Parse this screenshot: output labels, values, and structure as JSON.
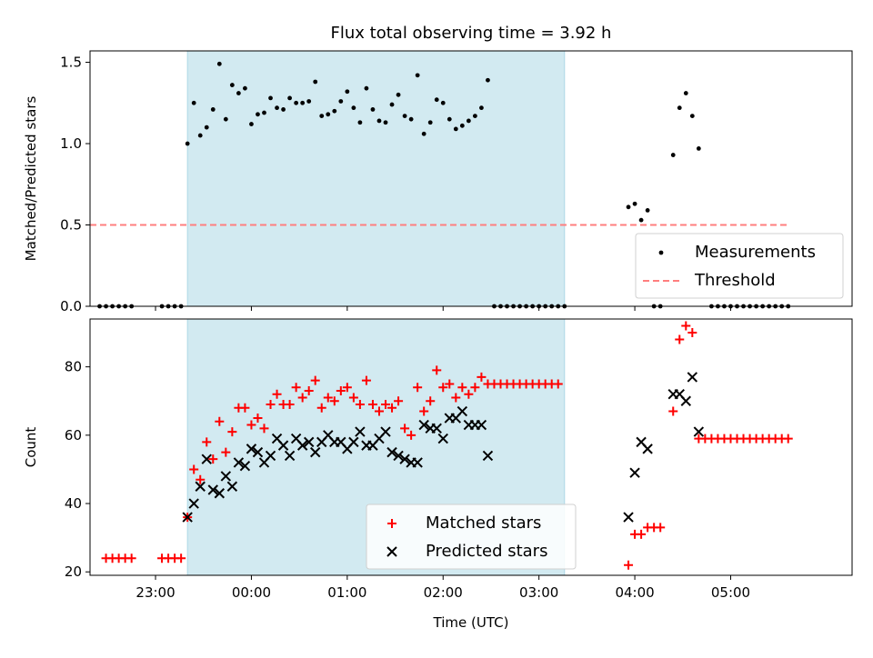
{
  "chart_data": [
    {
      "type": "scatter",
      "title": "Flux total observing time = 3.92 h",
      "xlabel": "",
      "ylabel": "Matched/Predicted stars",
      "xlim": [
        "22:19",
        "06:16"
      ],
      "ylim": [
        0,
        1.57
      ],
      "yticks": [
        0.0,
        0.5,
        1.0,
        1.5
      ],
      "yticklabels": [
        "0.0",
        "0.5",
        "1.0",
        "1.5"
      ],
      "xticks": [
        "23:00",
        "00:00",
        "01:00",
        "02:00",
        "03:00",
        "04:00",
        "05:00"
      ],
      "shaded_interval": [
        "23:20",
        "03:16"
      ],
      "shade_color": "#add8e6",
      "legend_position": "lower-right",
      "series": [
        {
          "name": "Measurements",
          "marker": "dot",
          "color": "#000000",
          "points": [
            [
              "22:25",
              0
            ],
            [
              "22:29",
              0
            ],
            [
              "22:33",
              0
            ],
            [
              "22:37",
              0
            ],
            [
              "22:41",
              0
            ],
            [
              "22:45",
              0
            ],
            [
              "23:04",
              0
            ],
            [
              "23:08",
              0
            ],
            [
              "23:12",
              0
            ],
            [
              "23:16",
              0
            ],
            [
              "23:20",
              1.0
            ],
            [
              "23:24",
              1.25
            ],
            [
              "23:28",
              1.05
            ],
            [
              "23:32",
              1.1
            ],
            [
              "23:36",
              1.21
            ],
            [
              "23:40",
              1.49
            ],
            [
              "23:44",
              1.15
            ],
            [
              "23:48",
              1.36
            ],
            [
              "23:52",
              1.31
            ],
            [
              "23:56",
              1.34
            ],
            [
              "00:00",
              1.12
            ],
            [
              "00:04",
              1.18
            ],
            [
              "00:08",
              1.19
            ],
            [
              "00:12",
              1.28
            ],
            [
              "00:16",
              1.22
            ],
            [
              "00:20",
              1.21
            ],
            [
              "00:24",
              1.28
            ],
            [
              "00:28",
              1.25
            ],
            [
              "00:32",
              1.25
            ],
            [
              "00:36",
              1.26
            ],
            [
              "00:40",
              1.38
            ],
            [
              "00:44",
              1.17
            ],
            [
              "00:48",
              1.18
            ],
            [
              "00:52",
              1.2
            ],
            [
              "00:56",
              1.26
            ],
            [
              "01:00",
              1.32
            ],
            [
              "01:04",
              1.22
            ],
            [
              "01:08",
              1.13
            ],
            [
              "01:12",
              1.34
            ],
            [
              "01:16",
              1.21
            ],
            [
              "01:20",
              1.14
            ],
            [
              "01:24",
              1.13
            ],
            [
              "01:28",
              1.24
            ],
            [
              "01:32",
              1.3
            ],
            [
              "01:36",
              1.17
            ],
            [
              "01:40",
              1.15
            ],
            [
              "01:44",
              1.42
            ],
            [
              "01:48",
              1.06
            ],
            [
              "01:52",
              1.13
            ],
            [
              "01:56",
              1.27
            ],
            [
              "02:00",
              1.25
            ],
            [
              "02:04",
              1.15
            ],
            [
              "02:08",
              1.09
            ],
            [
              "02:12",
              1.11
            ],
            [
              "02:16",
              1.14
            ],
            [
              "02:20",
              1.17
            ],
            [
              "02:24",
              1.22
            ],
            [
              "02:28",
              1.39
            ],
            [
              "02:32",
              0
            ],
            [
              "02:36",
              0
            ],
            [
              "02:40",
              0
            ],
            [
              "02:44",
              0
            ],
            [
              "02:48",
              0
            ],
            [
              "02:52",
              0
            ],
            [
              "02:56",
              0
            ],
            [
              "03:00",
              0
            ],
            [
              "03:04",
              0
            ],
            [
              "03:08",
              0
            ],
            [
              "03:12",
              0
            ],
            [
              "03:16",
              0
            ],
            [
              "03:56",
              0.61
            ],
            [
              "04:00",
              0.63
            ],
            [
              "04:04",
              0.53
            ],
            [
              "04:08",
              0.59
            ],
            [
              "04:12",
              0
            ],
            [
              "04:16",
              0
            ],
            [
              "04:24",
              0.93
            ],
            [
              "04:28",
              1.22
            ],
            [
              "04:32",
              1.31
            ],
            [
              "04:36",
              1.17
            ],
            [
              "04:40",
              0.97
            ],
            [
              "04:48",
              0
            ],
            [
              "04:52",
              0
            ],
            [
              "04:56",
              0
            ],
            [
              "05:00",
              0
            ],
            [
              "05:04",
              0
            ],
            [
              "05:08",
              0
            ],
            [
              "05:12",
              0
            ],
            [
              "05:16",
              0
            ],
            [
              "05:20",
              0
            ],
            [
              "05:24",
              0
            ],
            [
              "05:28",
              0
            ],
            [
              "05:32",
              0
            ],
            [
              "05:36",
              0
            ]
          ]
        },
        {
          "name": "Threshold",
          "marker": "dashed-line",
          "color": "#ff7f7f",
          "points": [
            [
              "22:19",
              0.5
            ],
            [
              "05:36",
              0.5
            ]
          ]
        }
      ]
    },
    {
      "type": "scatter",
      "title": "",
      "xlabel": "Time (UTC)",
      "ylabel": "Count",
      "xlim": [
        "22:19",
        "06:16"
      ],
      "ylim": [
        19,
        94
      ],
      "yticks": [
        20,
        40,
        60,
        80
      ],
      "xticks": [
        "23:00",
        "00:00",
        "01:00",
        "02:00",
        "03:00",
        "04:00",
        "05:00"
      ],
      "shaded_interval": [
        "23:20",
        "03:16"
      ],
      "shade_color": "#add8e6",
      "legend_position": "lower-center",
      "series": [
        {
          "name": "Matched stars",
          "marker": "plus",
          "color": "#ff0000",
          "points": [
            [
              "22:29",
              24
            ],
            [
              "22:33",
              24
            ],
            [
              "22:37",
              24
            ],
            [
              "22:41",
              24
            ],
            [
              "22:45",
              24
            ],
            [
              "23:04",
              24
            ],
            [
              "23:08",
              24
            ],
            [
              "23:12",
              24
            ],
            [
              "23:16",
              24
            ],
            [
              "23:20",
              36
            ],
            [
              "23:24",
              50
            ],
            [
              "23:28",
              47
            ],
            [
              "23:32",
              58
            ],
            [
              "23:36",
              53
            ],
            [
              "23:40",
              64
            ],
            [
              "23:44",
              55
            ],
            [
              "23:48",
              61
            ],
            [
              "23:52",
              68
            ],
            [
              "23:56",
              68
            ],
            [
              "00:00",
              63
            ],
            [
              "00:04",
              65
            ],
            [
              "00:08",
              62
            ],
            [
              "00:12",
              69
            ],
            [
              "00:16",
              72
            ],
            [
              "00:20",
              69
            ],
            [
              "00:24",
              69
            ],
            [
              "00:28",
              74
            ],
            [
              "00:32",
              71
            ],
            [
              "00:36",
              73
            ],
            [
              "00:40",
              76
            ],
            [
              "00:44",
              68
            ],
            [
              "00:48",
              71
            ],
            [
              "00:52",
              70
            ],
            [
              "00:56",
              73
            ],
            [
              "01:00",
              74
            ],
            [
              "01:04",
              71
            ],
            [
              "01:08",
              69
            ],
            [
              "01:12",
              76
            ],
            [
              "01:16",
              69
            ],
            [
              "01:20",
              67
            ],
            [
              "01:24",
              69
            ],
            [
              "01:28",
              68
            ],
            [
              "01:32",
              70
            ],
            [
              "01:36",
              62
            ],
            [
              "01:40",
              60
            ],
            [
              "01:44",
              74
            ],
            [
              "01:48",
              67
            ],
            [
              "01:52",
              70
            ],
            [
              "01:56",
              79
            ],
            [
              "02:00",
              74
            ],
            [
              "02:04",
              75
            ],
            [
              "02:08",
              71
            ],
            [
              "02:12",
              74
            ],
            [
              "02:16",
              72
            ],
            [
              "02:20",
              74
            ],
            [
              "02:24",
              77
            ],
            [
              "02:28",
              75
            ],
            [
              "02:32",
              75
            ],
            [
              "02:36",
              75
            ],
            [
              "02:40",
              75
            ],
            [
              "02:44",
              75
            ],
            [
              "02:48",
              75
            ],
            [
              "02:52",
              75
            ],
            [
              "02:56",
              75
            ],
            [
              "03:00",
              75
            ],
            [
              "03:04",
              75
            ],
            [
              "03:08",
              75
            ],
            [
              "03:12",
              75
            ],
            [
              "03:56",
              22
            ],
            [
              "04:00",
              31
            ],
            [
              "04:04",
              31
            ],
            [
              "04:08",
              33
            ],
            [
              "04:12",
              33
            ],
            [
              "04:16",
              33
            ],
            [
              "04:24",
              67
            ],
            [
              "04:28",
              88
            ],
            [
              "04:32",
              92
            ],
            [
              "04:36",
              90
            ],
            [
              "04:40",
              59
            ],
            [
              "04:44",
              59
            ],
            [
              "04:48",
              59
            ],
            [
              "04:52",
              59
            ],
            [
              "04:56",
              59
            ],
            [
              "05:00",
              59
            ],
            [
              "05:04",
              59
            ],
            [
              "05:08",
              59
            ],
            [
              "05:12",
              59
            ],
            [
              "05:16",
              59
            ],
            [
              "05:20",
              59
            ],
            [
              "05:24",
              59
            ],
            [
              "05:28",
              59
            ],
            [
              "05:32",
              59
            ],
            [
              "05:36",
              59
            ]
          ]
        },
        {
          "name": "Predicted stars",
          "marker": "x",
          "color": "#000000",
          "points": [
            [
              "23:20",
              36
            ],
            [
              "23:24",
              40
            ],
            [
              "23:28",
              45
            ],
            [
              "23:32",
              53
            ],
            [
              "23:36",
              44
            ],
            [
              "23:40",
              43
            ],
            [
              "23:44",
              48
            ],
            [
              "23:48",
              45
            ],
            [
              "23:52",
              52
            ],
            [
              "23:56",
              51
            ],
            [
              "00:00",
              56
            ],
            [
              "00:04",
              55
            ],
            [
              "00:08",
              52
            ],
            [
              "00:12",
              54
            ],
            [
              "00:16",
              59
            ],
            [
              "00:20",
              57
            ],
            [
              "00:24",
              54
            ],
            [
              "00:28",
              59
            ],
            [
              "00:32",
              57
            ],
            [
              "00:36",
              58
            ],
            [
              "00:40",
              55
            ],
            [
              "00:44",
              58
            ],
            [
              "00:48",
              60
            ],
            [
              "00:52",
              58
            ],
            [
              "00:56",
              58
            ],
            [
              "01:00",
              56
            ],
            [
              "01:04",
              58
            ],
            [
              "01:08",
              61
            ],
            [
              "01:12",
              57
            ],
            [
              "01:16",
              57
            ],
            [
              "01:20",
              59
            ],
            [
              "01:24",
              61
            ],
            [
              "01:28",
              55
            ],
            [
              "01:32",
              54
            ],
            [
              "01:36",
              53
            ],
            [
              "01:40",
              52
            ],
            [
              "01:44",
              52
            ],
            [
              "01:48",
              63
            ],
            [
              "01:52",
              62
            ],
            [
              "01:56",
              62
            ],
            [
              "02:00",
              59
            ],
            [
              "02:04",
              65
            ],
            [
              "02:08",
              65
            ],
            [
              "02:12",
              67
            ],
            [
              "02:16",
              63
            ],
            [
              "02:20",
              63
            ],
            [
              "02:24",
              63
            ],
            [
              "02:28",
              54
            ],
            [
              "03:56",
              36
            ],
            [
              "04:00",
              49
            ],
            [
              "04:04",
              58
            ],
            [
              "04:08",
              56
            ],
            [
              "04:24",
              72
            ],
            [
              "04:28",
              72
            ],
            [
              "04:32",
              70
            ],
            [
              "04:36",
              77
            ],
            [
              "04:40",
              61
            ]
          ]
        }
      ]
    }
  ]
}
